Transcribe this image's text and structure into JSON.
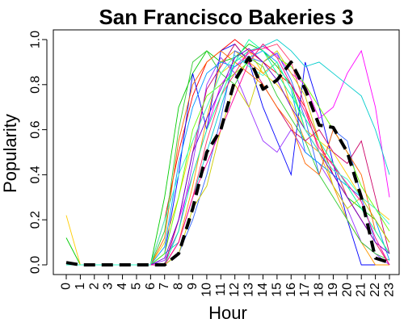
{
  "chart_data": {
    "type": "line",
    "title": "San Francisco Bakeries 3",
    "xlabel": "Hour",
    "ylabel": "Popularity",
    "xlim": [
      0,
      23
    ],
    "ylim": [
      0,
      1
    ],
    "x_ticks": [
      0,
      1,
      2,
      3,
      4,
      5,
      6,
      7,
      8,
      9,
      10,
      11,
      12,
      13,
      14,
      15,
      16,
      17,
      18,
      19,
      20,
      21,
      22,
      23
    ],
    "y_ticks": [
      "0.0",
      "0.2",
      "0.4",
      "0.6",
      "0.8",
      "1.0"
    ],
    "grid": false,
    "legend": "none",
    "x": [
      0,
      1,
      2,
      3,
      4,
      5,
      6,
      7,
      8,
      9,
      10,
      11,
      12,
      13,
      14,
      15,
      16,
      17,
      18,
      19,
      20,
      21,
      22,
      23
    ],
    "mean_series": {
      "style": "dashed",
      "color": "#000000",
      "values": [
        0.01,
        0.0,
        0.0,
        0.0,
        0.0,
        0.0,
        0.0,
        0.0,
        0.05,
        0.25,
        0.5,
        0.6,
        0.82,
        0.92,
        0.78,
        0.82,
        0.9,
        0.78,
        0.62,
        0.61,
        0.5,
        0.3,
        0.03,
        0.01
      ]
    },
    "background_series": [
      {
        "color": "#ff0000",
        "values": [
          0,
          0,
          0,
          0,
          0,
          0,
          0,
          0.2,
          0.5,
          0.75,
          0.9,
          0.95,
          1.0,
          0.95,
          0.9,
          0.85,
          0.8,
          0.7,
          0.55,
          0.4,
          0.3,
          0.2,
          0.1,
          0
        ]
      },
      {
        "color": "#00cc00",
        "values": [
          0.12,
          0,
          0,
          0,
          0,
          0,
          0,
          0.3,
          0.7,
          0.85,
          0.95,
          0.9,
          0.92,
          0.98,
          0.95,
          0.88,
          0.8,
          0.6,
          0.5,
          0.45,
          0.3,
          0.25,
          0.2,
          0.1
        ]
      },
      {
        "color": "#0000ff",
        "values": [
          0,
          0,
          0,
          0,
          0,
          0,
          0,
          0.05,
          0.4,
          0.85,
          0.6,
          0.95,
          0.98,
          0.9,
          0.7,
          0.55,
          0.4,
          0.9,
          0.7,
          0.45,
          0.2,
          0,
          0,
          0
        ]
      },
      {
        "color": "#ffcc00",
        "values": [
          0.22,
          0,
          0,
          0,
          0,
          0,
          0,
          0.1,
          0.3,
          0.55,
          0.7,
          0.85,
          0.9,
          0.95,
          0.85,
          0.8,
          0.72,
          0.6,
          0.55,
          0.5,
          0.4,
          0.3,
          0.25,
          0.2
        ]
      },
      {
        "color": "#ff00ff",
        "values": [
          0,
          0,
          0,
          0,
          0,
          0,
          0,
          0,
          0.2,
          0.4,
          0.6,
          0.8,
          0.88,
          0.94,
          0.97,
          0.93,
          0.85,
          0.8,
          0.65,
          0.7,
          0.85,
          0.95,
          0.7,
          0.3
        ]
      },
      {
        "color": "#00cccc",
        "values": [
          0,
          0,
          0,
          0,
          0,
          0,
          0,
          0.05,
          0.1,
          0.3,
          0.5,
          0.7,
          0.9,
          0.95,
          0.97,
          1.0,
          0.95,
          0.88,
          0.9,
          0.85,
          0.8,
          0.75,
          0.6,
          0.4
        ]
      },
      {
        "color": "#9933ff",
        "values": [
          0,
          0,
          0,
          0,
          0,
          0,
          0,
          0.02,
          0.15,
          0.45,
          0.8,
          0.92,
          0.85,
          0.7,
          0.55,
          0.5,
          0.6,
          0.5,
          0.45,
          0.35,
          0.25,
          0.1,
          0.05,
          0
        ]
      },
      {
        "color": "#ff9900",
        "values": [
          0,
          0,
          0,
          0,
          0,
          0,
          0,
          0,
          0.1,
          0.35,
          0.65,
          0.9,
          0.95,
          0.9,
          0.85,
          0.9,
          0.7,
          0.55,
          0.5,
          0.35,
          0.2,
          0.1,
          0,
          0
        ]
      },
      {
        "color": "#33cc33",
        "values": [
          0,
          0,
          0,
          0,
          0,
          0,
          0,
          0.15,
          0.6,
          0.9,
          0.95,
          0.85,
          0.8,
          0.92,
          0.88,
          0.75,
          0.65,
          0.55,
          0.4,
          0.3,
          0.2,
          0.1,
          0.05,
          0.02
        ]
      },
      {
        "color": "#3366ff",
        "values": [
          0,
          0,
          0,
          0,
          0,
          0,
          0,
          0,
          0.05,
          0.2,
          0.4,
          0.65,
          0.95,
          0.92,
          0.9,
          0.94,
          0.82,
          0.65,
          0.4,
          0.6,
          0.55,
          0.3,
          0.1,
          0
        ]
      },
      {
        "color": "#cc0066",
        "values": [
          0,
          0,
          0,
          0,
          0,
          0,
          0,
          0,
          0.2,
          0.5,
          0.78,
          0.88,
          0.98,
          0.9,
          0.8,
          0.7,
          0.6,
          0.55,
          0.6,
          0.5,
          0.45,
          0.55,
          0.3,
          0.05
        ]
      },
      {
        "color": "#66ff00",
        "values": [
          0,
          0,
          0,
          0,
          0,
          0,
          0,
          0.05,
          0.3,
          0.6,
          0.75,
          0.8,
          0.85,
          0.9,
          0.98,
          0.92,
          0.88,
          0.8,
          0.7,
          0.6,
          0.5,
          0.35,
          0.25,
          0.15
        ]
      },
      {
        "color": "#ff3366",
        "values": [
          0,
          0,
          0,
          0,
          0,
          0,
          0,
          0,
          0.1,
          0.3,
          0.55,
          0.75,
          0.85,
          0.95,
          0.96,
          0.98,
          0.9,
          0.7,
          0.5,
          0.45,
          0.3,
          0.2,
          0.1,
          0
        ]
      },
      {
        "color": "#0099ff",
        "values": [
          0,
          0,
          0,
          0,
          0,
          0,
          0,
          0.08,
          0.45,
          0.7,
          0.85,
          0.9,
          0.88,
          0.92,
          0.95,
          0.9,
          0.78,
          0.5,
          0.45,
          0.4,
          0.35,
          0.3,
          0.2,
          0.02
        ]
      },
      {
        "color": "#cccc00",
        "values": [
          0,
          0,
          0,
          0,
          0,
          0,
          0,
          0,
          0.05,
          0.25,
          0.35,
          0.6,
          0.8,
          0.7,
          0.9,
          0.95,
          0.85,
          0.75,
          0.55,
          0.35,
          0.25,
          0.3,
          0.2,
          0.1
        ]
      },
      {
        "color": "#ff6600",
        "values": [
          0,
          0,
          0,
          0,
          0,
          0,
          0,
          0.12,
          0.55,
          0.8,
          0.9,
          0.95,
          0.9,
          0.85,
          0.8,
          0.7,
          0.62,
          0.45,
          0.4,
          0.6,
          0.5,
          0.4,
          0.15,
          0.05
        ]
      },
      {
        "color": "#00ff99",
        "values": [
          0,
          0,
          0,
          0,
          0,
          0,
          0,
          0,
          0.15,
          0.4,
          0.6,
          0.75,
          0.9,
          1.0,
          0.95,
          0.85,
          0.75,
          0.65,
          0.55,
          0.45,
          0.35,
          0.25,
          0.15,
          0.05
        ]
      },
      {
        "color": "#6600cc",
        "values": [
          0,
          0,
          0,
          0,
          0,
          0,
          0,
          0.03,
          0.2,
          0.5,
          0.65,
          0.78,
          0.92,
          0.96,
          0.9,
          0.82,
          0.7,
          0.6,
          0.5,
          0.4,
          0.3,
          0.2,
          0.1,
          0.05
        ]
      },
      {
        "color": "#ff0099",
        "values": [
          0,
          0,
          0,
          0,
          0,
          0,
          0,
          0,
          0.1,
          0.3,
          0.45,
          0.6,
          0.75,
          0.9,
          0.98,
          0.92,
          0.8,
          0.68,
          0.52,
          0.44,
          0.36,
          0.28,
          0.12,
          0
        ]
      },
      {
        "color": "#33ffcc",
        "values": [
          0,
          0,
          0,
          0,
          0,
          0,
          0,
          0.2,
          0.4,
          0.55,
          0.7,
          0.85,
          0.93,
          0.88,
          0.84,
          0.9,
          0.78,
          0.6,
          0.5,
          0.42,
          0.38,
          0.3,
          0.25,
          0.18
        ]
      }
    ]
  }
}
